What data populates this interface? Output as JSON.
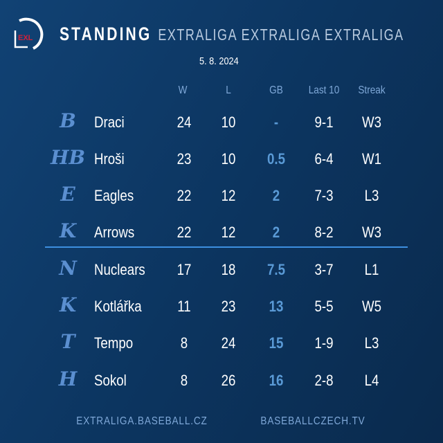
{
  "header": {
    "logo_text": "EXL",
    "title": "STANDING",
    "title_outline": "EXTRALIGA EXTRALIGA EXTRALIGA",
    "date": "5. 8. 2024"
  },
  "columns": {
    "w": "W",
    "l": "L",
    "gb": "GB",
    "last10": "Last 10",
    "streak": "Streak"
  },
  "teams": [
    {
      "logo": "B",
      "name": "Draci",
      "w": "24",
      "l": "10",
      "gb": "-",
      "last10": "9-1",
      "streak": "W3"
    },
    {
      "logo": "HB",
      "name": "Hroši",
      "w": "23",
      "l": "10",
      "gb": "0.5",
      "last10": "6-4",
      "streak": "W1"
    },
    {
      "logo": "E",
      "name": "Eagles",
      "w": "22",
      "l": "12",
      "gb": "2",
      "last10": "7-3",
      "streak": "L3"
    },
    {
      "logo": "K",
      "name": "Arrows",
      "w": "22",
      "l": "12",
      "gb": "2",
      "last10": "8-2",
      "streak": "W3"
    },
    {
      "logo": "N",
      "name": "Nuclears",
      "w": "17",
      "l": "18",
      "gb": "7.5",
      "last10": "3-7",
      "streak": "L1"
    },
    {
      "logo": "K",
      "name": "Kotlářka",
      "w": "11",
      "l": "23",
      "gb": "13",
      "last10": "5-5",
      "streak": "W5"
    },
    {
      "logo": "T",
      "name": "Tempo",
      "w": "8",
      "l": "24",
      "gb": "15",
      "last10": "1-9",
      "streak": "L3"
    },
    {
      "logo": "H",
      "name": "Sokol",
      "w": "8",
      "l": "26",
      "gb": "16",
      "last10": "2-8",
      "streak": "L4"
    }
  ],
  "footer": {
    "left": "EXTRALIGA.BASEBALL.CZ",
    "right": "BASEBALLCZECH.TV"
  },
  "colors": {
    "accent": "#5a9ad6",
    "separator": "#3d8fe0"
  }
}
